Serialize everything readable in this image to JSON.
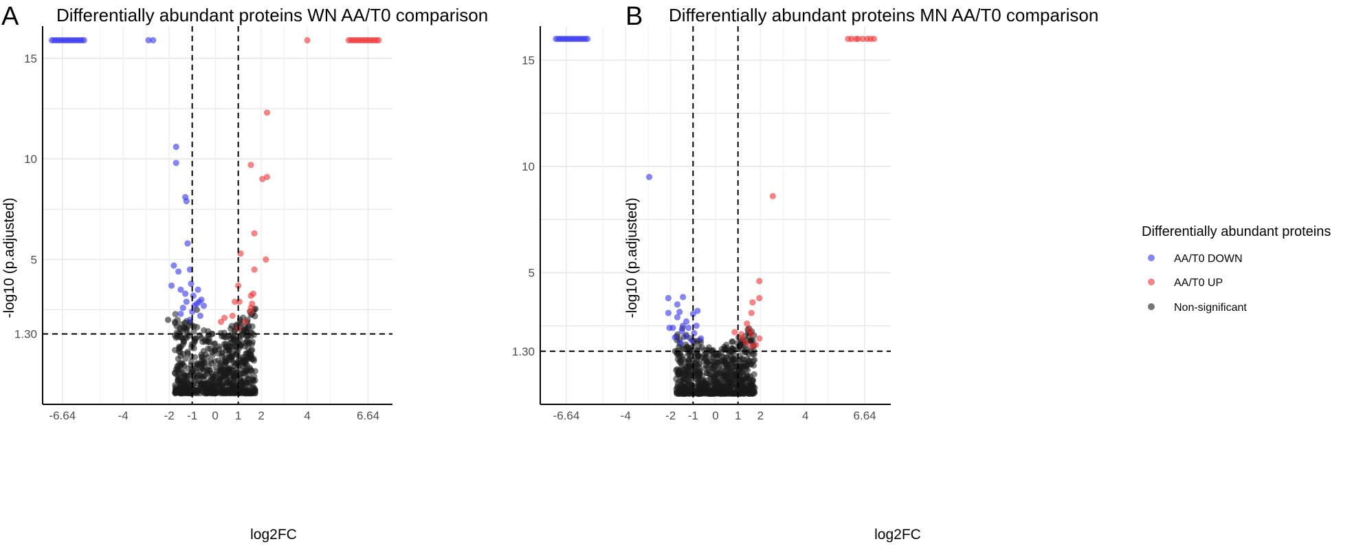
{
  "chart_data": [
    {
      "type": "scatter",
      "panel_letter": "A",
      "title": "Differentially abundant proteins WN AA/T0 comparison",
      "xlabel": "log2FC",
      "ylabel": "-log10 (p.adjusted)",
      "xlim": [
        -7.5,
        7.7
      ],
      "ylim": [
        -2.2,
        16.6
      ],
      "xticks": [
        -6.64,
        -4,
        -2,
        -1,
        0,
        1,
        2,
        4,
        6.64
      ],
      "xtick_labels": [
        "-6.64",
        "-4",
        "-2",
        "-1",
        "0",
        "1",
        "2",
        "4",
        "6.64"
      ],
      "yticks": [
        1.3,
        5,
        10,
        15
      ],
      "ytick_labels": [
        "1.30",
        "5",
        "10",
        "15"
      ],
      "thresholds": {
        "x": [
          -1,
          1
        ],
        "y": 1.3
      },
      "series": [
        {
          "name": "AA/T0 DOWN",
          "color": "#3333ee",
          "points": [
            [
              -7.1,
              15.9
            ],
            [
              -7.0,
              15.9
            ],
            [
              -6.9,
              15.9
            ],
            [
              -6.8,
              15.9
            ],
            [
              -6.7,
              15.9
            ],
            [
              -6.6,
              15.9
            ],
            [
              -6.5,
              15.9
            ],
            [
              -6.4,
              15.9
            ],
            [
              -6.3,
              15.9
            ],
            [
              -6.2,
              15.9
            ],
            [
              -6.1,
              15.9
            ],
            [
              -6.0,
              15.9
            ],
            [
              -5.9,
              15.9
            ],
            [
              -5.8,
              15.9
            ],
            [
              -5.7,
              15.9
            ],
            [
              -2.9,
              15.9
            ],
            [
              -2.7,
              15.9
            ],
            [
              -1.7,
              10.6
            ],
            [
              -1.7,
              9.8
            ],
            [
              -1.3,
              8.1
            ],
            [
              -1.25,
              7.9
            ],
            [
              -1.2,
              5.8
            ],
            [
              -1.8,
              4.7
            ],
            [
              -1.1,
              4.5
            ],
            [
              -1.6,
              4.4
            ],
            [
              -1.9,
              3.7
            ],
            [
              -1.5,
              3.5
            ],
            [
              -1.05,
              3.8
            ],
            [
              -0.75,
              3.5
            ],
            [
              -1.3,
              3.3
            ],
            [
              -0.95,
              3.2
            ],
            [
              -1.25,
              2.9
            ],
            [
              -0.6,
              3.0
            ],
            [
              -0.5,
              2.7
            ],
            [
              -0.9,
              2.7
            ],
            [
              -0.8,
              2.8
            ],
            [
              -0.7,
              2.9
            ],
            [
              -1.4,
              2.6
            ],
            [
              -1.0,
              2.4
            ],
            [
              -1.5,
              2.3
            ],
            [
              -0.65,
              2.2
            ],
            [
              -1.1,
              2.0
            ]
          ]
        },
        {
          "name": "AA/T0 UP",
          "color": "#ee3333",
          "points": [
            [
              4.0,
              15.9
            ],
            [
              5.8,
              15.9
            ],
            [
              5.9,
              15.9
            ],
            [
              6.0,
              15.9
            ],
            [
              6.1,
              15.9
            ],
            [
              6.2,
              15.9
            ],
            [
              6.3,
              15.9
            ],
            [
              6.4,
              15.9
            ],
            [
              6.5,
              15.9
            ],
            [
              6.6,
              15.9
            ],
            [
              6.7,
              15.9
            ],
            [
              6.8,
              15.9
            ],
            [
              6.9,
              15.9
            ],
            [
              7.0,
              15.9
            ],
            [
              7.1,
              15.9
            ],
            [
              2.25,
              12.3
            ],
            [
              1.55,
              9.7
            ],
            [
              2.25,
              9.1
            ],
            [
              2.05,
              9.0
            ],
            [
              1.7,
              6.3
            ],
            [
              1.1,
              5.3
            ],
            [
              2.2,
              5.0
            ],
            [
              1.7,
              4.5
            ],
            [
              1.0,
              3.7
            ],
            [
              1.65,
              3.3
            ],
            [
              1.55,
              3.2
            ],
            [
              0.85,
              2.9
            ],
            [
              1.05,
              2.9
            ],
            [
              1.6,
              2.8
            ],
            [
              1.55,
              2.6
            ],
            [
              0.4,
              2.1
            ],
            [
              0.25,
              1.9
            ],
            [
              0.75,
              2.2
            ],
            [
              1.3,
              1.9
            ],
            [
              1.55,
              2.4
            ],
            [
              1.0,
              1.6
            ]
          ]
        },
        {
          "name": "Non-significant",
          "color": "#1a1a1a",
          "role": "cloud",
          "points": [
            [
              -2.05,
              2.0
            ],
            [
              -1.5,
              1.5
            ],
            [
              -1.6,
              1.3
            ],
            [
              -1.45,
              1.1
            ],
            [
              -1.15,
              1.2
            ],
            [
              -0.9,
              1.0
            ],
            [
              -0.6,
              1.1
            ],
            [
              -0.3,
              0.9
            ],
            [
              0.4,
              0.8
            ],
            [
              0.9,
              1.0
            ],
            [
              1.2,
              1.3
            ],
            [
              1.25,
              1.5
            ],
            [
              1.4,
              1.2
            ],
            [
              1.1,
              0.7
            ],
            [
              -1.55,
              0.6
            ],
            [
              -1.2,
              0.4
            ],
            [
              1.6,
              0.5
            ],
            [
              -0.8,
              2.5
            ]
          ]
        }
      ]
    },
    {
      "type": "scatter",
      "panel_letter": "B",
      "title": "Differentially abundant proteins MN AA/T0 comparison",
      "xlabel": "log2FC",
      "ylabel": "-log10 (p.adjusted)",
      "xlim": [
        -7.8,
        7.8
      ],
      "ylim": [
        -1.2,
        16.6
      ],
      "xticks": [
        -6.64,
        -4,
        -2,
        -1,
        0,
        1,
        2,
        4,
        6.64
      ],
      "xtick_labels": [
        "-6.64",
        "-4",
        "-2",
        "-1",
        "0",
        "1",
        "2",
        "4",
        "6.64"
      ],
      "yticks": [
        1.3,
        5,
        10,
        15
      ],
      "ytick_labels": [
        "1.30",
        "5",
        "10",
        "15"
      ],
      "thresholds": {
        "x": [
          -1,
          1
        ],
        "y": 1.3
      },
      "series": [
        {
          "name": "AA/T0 DOWN",
          "color": "#3333ee",
          "points": [
            [
              -7.1,
              16.0
            ],
            [
              -7.0,
              16.0
            ],
            [
              -6.9,
              16.0
            ],
            [
              -6.8,
              16.0
            ],
            [
              -6.7,
              16.0
            ],
            [
              -6.6,
              16.0
            ],
            [
              -6.5,
              16.0
            ],
            [
              -6.4,
              16.0
            ],
            [
              -6.3,
              16.0
            ],
            [
              -6.2,
              16.0
            ],
            [
              -6.1,
              16.0
            ],
            [
              -6.0,
              16.0
            ],
            [
              -5.9,
              16.0
            ],
            [
              -5.8,
              16.0
            ],
            [
              -5.7,
              16.0
            ],
            [
              -2.95,
              9.5
            ],
            [
              -2.1,
              3.8
            ],
            [
              -1.45,
              3.85
            ],
            [
              -1.7,
              3.5
            ],
            [
              -2.1,
              3.1
            ],
            [
              -1.6,
              3.15
            ],
            [
              -1.7,
              2.9
            ],
            [
              -1.3,
              2.7
            ],
            [
              -1.45,
              2.5
            ],
            [
              -1.2,
              2.4
            ],
            [
              -2.05,
              2.4
            ],
            [
              -1.5,
              2.25
            ],
            [
              -1.9,
              2.4
            ],
            [
              -1.3,
              2.0
            ],
            [
              -1.55,
              1.7
            ],
            [
              -1.8,
              1.95
            ],
            [
              -0.8,
              3.2
            ],
            [
              -1.0,
              3.05
            ],
            [
              -0.85,
              2.5
            ],
            [
              -0.95,
              2.15
            ],
            [
              -1.05,
              1.8
            ],
            [
              -0.65,
              1.9
            ]
          ]
        },
        {
          "name": "AA/T0 UP",
          "color": "#ee3333",
          "points": [
            [
              5.9,
              16.0
            ],
            [
              6.05,
              16.0
            ],
            [
              6.25,
              16.0
            ],
            [
              6.35,
              16.0
            ],
            [
              6.55,
              16.0
            ],
            [
              6.75,
              16.0
            ],
            [
              6.9,
              16.0
            ],
            [
              7.05,
              16.0
            ],
            [
              2.55,
              8.6
            ],
            [
              1.95,
              4.6
            ],
            [
              1.95,
              3.8
            ],
            [
              1.65,
              3.6
            ],
            [
              1.6,
              3.1
            ],
            [
              1.4,
              2.6
            ],
            [
              1.5,
              2.3
            ],
            [
              1.6,
              2.1
            ],
            [
              1.2,
              1.9
            ],
            [
              1.35,
              1.7
            ],
            [
              1.8,
              1.6
            ],
            [
              1.95,
              1.9
            ],
            [
              0.85,
              2.2
            ],
            [
              1.15,
              2.1
            ],
            [
              1.6,
              1.55
            ]
          ]
        },
        {
          "name": "Non-significant",
          "color": "#1a1a1a",
          "role": "cloud",
          "points": [
            [
              -1.8,
              1.3
            ],
            [
              -1.6,
              1.2
            ],
            [
              -1.4,
              1.4
            ],
            [
              -1.1,
              1.3
            ],
            [
              -0.85,
              1.2
            ],
            [
              -0.6,
              1.0
            ],
            [
              0.5,
              1.0
            ],
            [
              0.75,
              1.3
            ],
            [
              1.0,
              1.4
            ],
            [
              1.3,
              1.3
            ],
            [
              1.5,
              0.8
            ],
            [
              1.6,
              0.7
            ],
            [
              -1.5,
              0.6
            ],
            [
              -1.6,
              0.8
            ],
            [
              -1.2,
              0.4
            ],
            [
              1.2,
              0.3
            ],
            [
              0.9,
              0.9
            ],
            [
              -0.95,
              1.7
            ]
          ]
        }
      ]
    }
  ],
  "legend": {
    "title": "Differentially abundant proteins",
    "items": [
      {
        "label": "AA/T0 DOWN",
        "color": "#3333ee"
      },
      {
        "label": "AA/T0 UP",
        "color": "#ee3333"
      },
      {
        "label": "Non-significant",
        "color": "#1a1a1a"
      }
    ]
  }
}
